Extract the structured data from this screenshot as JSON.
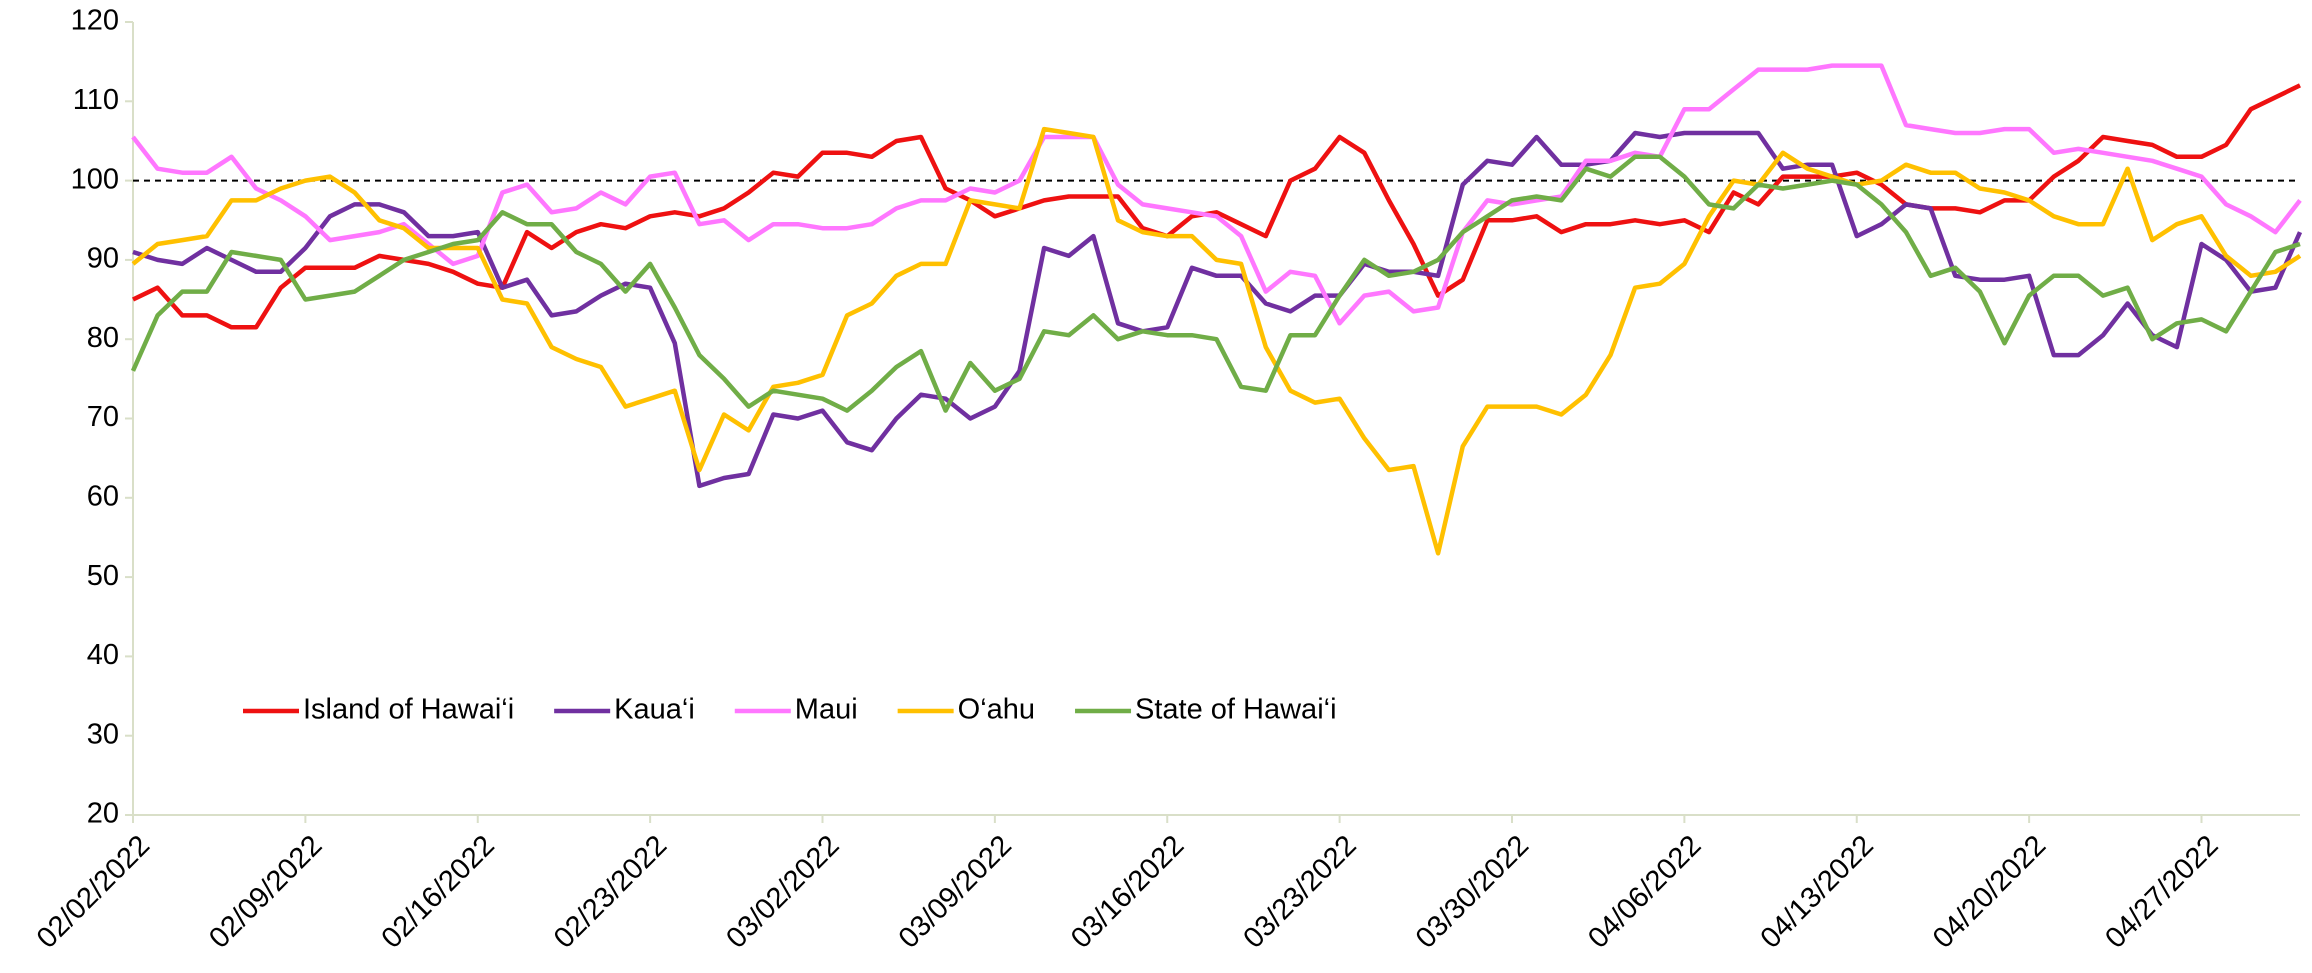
{
  "chart_data": {
    "type": "line",
    "x": [
      "02/02/2022",
      "02/03/2022",
      "02/04/2022",
      "02/05/2022",
      "02/06/2022",
      "02/07/2022",
      "02/08/2022",
      "02/09/2022",
      "02/10/2022",
      "02/11/2022",
      "02/12/2022",
      "02/13/2022",
      "02/14/2022",
      "02/15/2022",
      "02/16/2022",
      "02/17/2022",
      "02/18/2022",
      "02/19/2022",
      "02/20/2022",
      "02/21/2022",
      "02/22/2022",
      "02/23/2022",
      "02/24/2022",
      "02/25/2022",
      "02/26/2022",
      "02/27/2022",
      "02/28/2022",
      "03/01/2022",
      "03/02/2022",
      "03/03/2022",
      "03/04/2022",
      "03/05/2022",
      "03/06/2022",
      "03/07/2022",
      "03/08/2022",
      "03/09/2022",
      "03/10/2022",
      "03/11/2022",
      "03/12/2022",
      "03/13/2022",
      "03/14/2022",
      "03/15/2022",
      "03/16/2022",
      "03/17/2022",
      "03/18/2022",
      "03/19/2022",
      "03/20/2022",
      "03/21/2022",
      "03/22/2022",
      "03/23/2022",
      "03/24/2022",
      "03/25/2022",
      "03/26/2022",
      "03/27/2022",
      "03/28/2022",
      "03/29/2022",
      "03/30/2022",
      "03/31/2022",
      "04/01/2022",
      "04/02/2022",
      "04/03/2022",
      "04/04/2022",
      "04/05/2022",
      "04/06/2022",
      "04/07/2022",
      "04/08/2022",
      "04/09/2022",
      "04/10/2022",
      "04/11/2022",
      "04/12/2022",
      "04/13/2022",
      "04/14/2022",
      "04/15/2022",
      "04/16/2022",
      "04/17/2022",
      "04/18/2022",
      "04/19/2022",
      "04/20/2022",
      "04/21/2022",
      "04/22/2022",
      "04/23/2022",
      "04/24/2022",
      "04/25/2022",
      "04/26/2022",
      "04/27/2022",
      "04/28/2022",
      "04/29/2022",
      "04/30/2022",
      "05/01/2022"
    ],
    "xticks": [
      "02/02/2022",
      "02/09/2022",
      "02/16/2022",
      "02/23/2022",
      "03/02/2022",
      "03/09/2022",
      "03/16/2022",
      "03/23/2022",
      "03/30/2022",
      "04/06/2022",
      "04/13/2022",
      "04/20/2022",
      "04/27/2022"
    ],
    "ylim": [
      20,
      120
    ],
    "yticks": [
      20,
      30,
      40,
      50,
      60,
      70,
      80,
      90,
      100,
      110,
      120
    ],
    "reference_line": 100,
    "series": [
      {
        "name": "Island of Hawai‘i",
        "color": "#ee1111",
        "values": [
          85,
          86.5,
          83,
          83,
          81.5,
          81.5,
          86.5,
          89,
          89,
          89,
          90.5,
          90,
          89.5,
          88.5,
          87,
          86.5,
          93.5,
          91.5,
          93.5,
          94.5,
          94,
          95.5,
          96,
          95.5,
          96.5,
          98.5,
          101,
          100.5,
          103.5,
          103.5,
          103,
          105,
          105.5,
          99,
          97.5,
          95.5,
          96.5,
          97.5,
          98,
          98,
          98,
          94,
          93,
          95.5,
          96,
          94.5,
          93,
          100,
          101.5,
          105.5,
          103.5,
          97.5,
          92,
          85.5,
          87.5,
          95,
          95,
          95.5,
          93.5,
          94.5,
          94.5,
          95,
          94.5,
          95,
          93.5,
          98.5,
          97,
          100.5,
          100.5,
          100.5,
          101,
          99.5,
          97,
          96.5,
          96.5,
          96,
          97.5,
          97.5,
          100.5,
          102.5,
          105.5,
          105,
          104.5,
          103,
          103,
          104.5,
          109,
          110.5,
          112
        ]
      },
      {
        "name": "Kaua‘i",
        "color": "#7030a0",
        "values": [
          91,
          90,
          89.5,
          91.5,
          90,
          88.5,
          88.5,
          91.5,
          95.5,
          97,
          97,
          96,
          93,
          93,
          93.5,
          86.5,
          87.5,
          83,
          83.5,
          85.5,
          87,
          86.5,
          79.5,
          61.5,
          62.5,
          63,
          70.5,
          70,
          71,
          67,
          66,
          70,
          73,
          72.5,
          70,
          71.5,
          76,
          91.5,
          90.5,
          93,
          82,
          81,
          81.5,
          89,
          88,
          88,
          84.5,
          83.5,
          85.5,
          85.5,
          89.5,
          88.5,
          88.5,
          88,
          99.5,
          102.5,
          102,
          105.5,
          102,
          102,
          102.5,
          106,
          105.5,
          106,
          106,
          106,
          106,
          101.5,
          102,
          102,
          93,
          94.5,
          97,
          96.5,
          88,
          87.5,
          87.5,
          88,
          78,
          78,
          80.5,
          84.5,
          80.5,
          79,
          92,
          90,
          86,
          86.5,
          93.5
        ]
      },
      {
        "name": "Maui",
        "color": "#ff77ff",
        "values": [
          105.5,
          101.5,
          101,
          101,
          103,
          99,
          97.5,
          95.5,
          92.5,
          93,
          93.5,
          94.5,
          92,
          89.5,
          90.5,
          98.5,
          99.5,
          96,
          96.5,
          98.5,
          97,
          100.5,
          101,
          94.5,
          95,
          92.5,
          94.5,
          94.5,
          94,
          94,
          94.5,
          96.5,
          97.5,
          97.5,
          99,
          98.5,
          100,
          105.5,
          105.5,
          105.5,
          99.5,
          97,
          96.5,
          96,
          95.5,
          93,
          86,
          88.5,
          88,
          82,
          85.5,
          86,
          83.5,
          84,
          93.5,
          97.5,
          97,
          97.5,
          98,
          102.5,
          102.5,
          103.5,
          103,
          109,
          109,
          111.5,
          114,
          114,
          114,
          114.5,
          114.5,
          114.5,
          107,
          106.5,
          106,
          106,
          106.5,
          106.5,
          103.5,
          104,
          103.5,
          103,
          102.5,
          101.5,
          100.5,
          97,
          95.5,
          93.5,
          97.5
        ]
      },
      {
        "name": "O‘ahu",
        "color": "#ffc000",
        "values": [
          89.5,
          92,
          92.5,
          93,
          97.5,
          97.5,
          99,
          100,
          100.5,
          98.5,
          95,
          94,
          91.5,
          91.5,
          91.5,
          85,
          84.5,
          79,
          77.5,
          76.5,
          71.5,
          72.5,
          73.5,
          63.5,
          70.5,
          68.5,
          74,
          74.5,
          75.5,
          83,
          84.5,
          88,
          89.5,
          89.5,
          97.5,
          97,
          96.5,
          106.5,
          106,
          105.5,
          95,
          93.5,
          93,
          93,
          90,
          89.5,
          79,
          73.5,
          72,
          72.5,
          67.5,
          63.5,
          64,
          53,
          66.5,
          71.5,
          71.5,
          71.5,
          70.5,
          73,
          78,
          86.5,
          87,
          89.5,
          95.5,
          100,
          99.5,
          103.5,
          101.5,
          100.5,
          99.5,
          100,
          102,
          101,
          101,
          99,
          98.5,
          97.5,
          95.5,
          94.5,
          94.5,
          101.5,
          92.5,
          94.5,
          95.5,
          90.5,
          88,
          88.5,
          90.5
        ]
      },
      {
        "name": "State of Hawai‘i",
        "color": "#70ad47",
        "values": [
          76,
          83,
          86,
          86,
          91,
          90.5,
          90,
          85,
          85.5,
          86,
          88,
          90,
          91,
          92,
          92.5,
          96,
          94.5,
          94.5,
          91,
          89.5,
          86,
          89.5,
          84,
          78,
          75,
          71.5,
          73.5,
          73,
          72.5,
          71,
          73.5,
          76.5,
          78.5,
          71,
          77,
          73.5,
          75,
          81,
          80.5,
          83,
          80,
          81,
          80.5,
          80.5,
          80,
          74,
          73.5,
          80.5,
          80.5,
          85.5,
          90,
          88,
          88.5,
          90,
          93.5,
          95.5,
          97.5,
          98,
          97.5,
          101.5,
          100.5,
          103,
          103,
          100.5,
          97,
          96.5,
          99.5,
          99,
          99.5,
          100,
          99.5,
          97,
          93.5,
          88,
          89,
          86,
          79.5,
          85.5,
          88,
          88,
          85.5,
          86.5,
          80,
          82,
          82.5,
          81,
          86,
          91,
          92
        ]
      }
    ]
  }
}
